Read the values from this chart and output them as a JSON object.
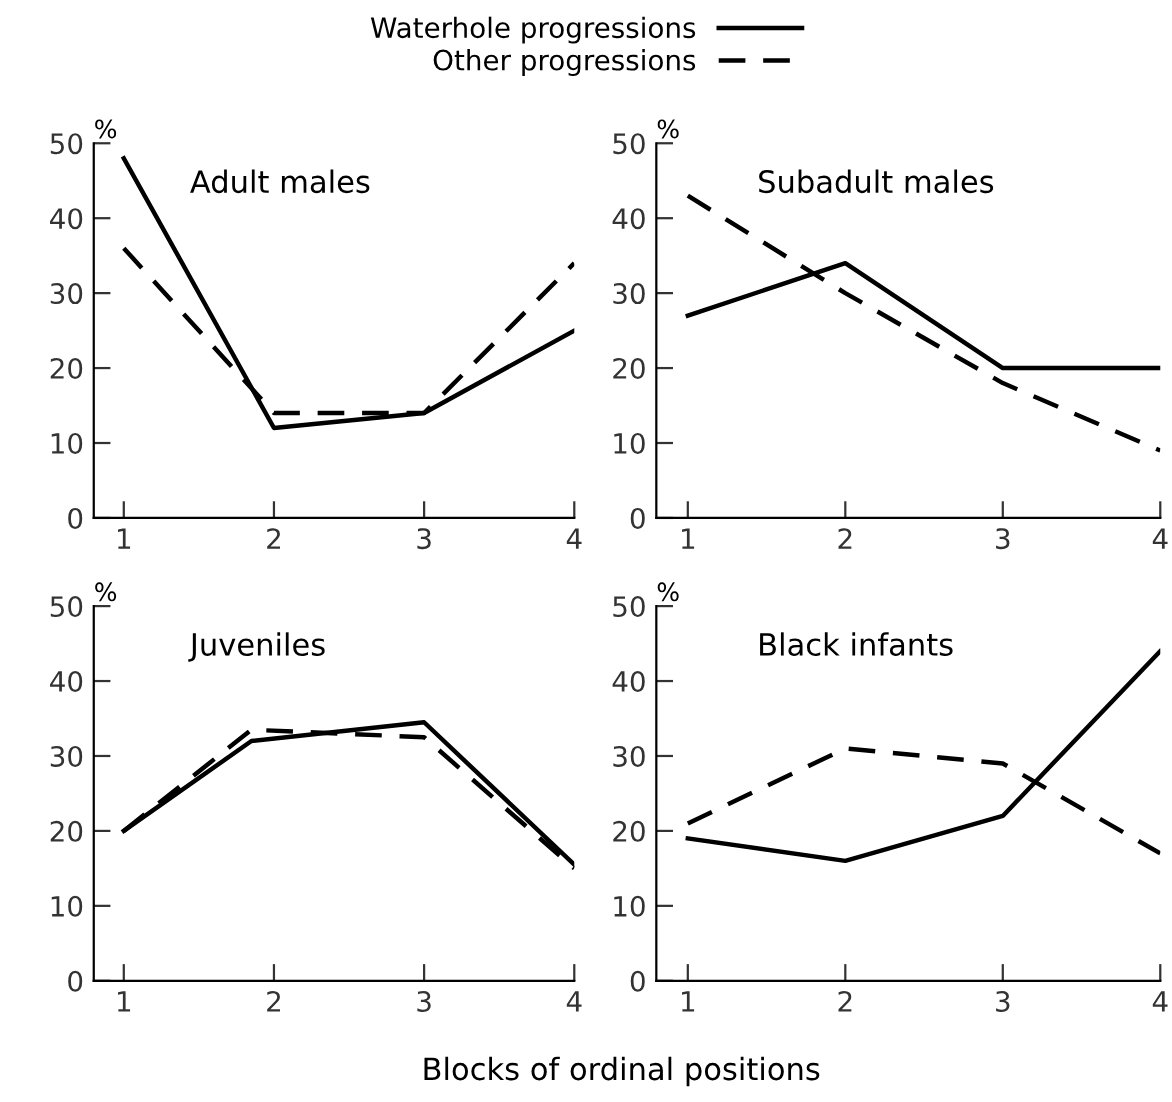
{
  "chart_data": [
    {
      "type": "line",
      "title": "Adult males",
      "ylabel": "%",
      "x": [
        1,
        2,
        3,
        4
      ],
      "xlim": [
        0.8,
        4
      ],
      "xticks": [
        1,
        2,
        3,
        4
      ],
      "ylim": [
        0,
        50
      ],
      "yticks": [
        0,
        10,
        20,
        30,
        40,
        50
      ],
      "legend": "top",
      "grid": false,
      "marker": "none",
      "series": [
        {
          "name": "Waterhole progressions",
          "color": "#000000",
          "line_style": "solid",
          "values": [
            48,
            12,
            14,
            25
          ]
        },
        {
          "name": "Other progressions",
          "color": "#000000",
          "line_style": "dashed",
          "values": [
            36,
            14,
            14,
            34
          ]
        }
      ]
    },
    {
      "type": "line",
      "title": "Subadult males",
      "ylabel": "%",
      "x": [
        1,
        2,
        3,
        4
      ],
      "xlim": [
        0.8,
        4
      ],
      "xticks": [
        1,
        2,
        3,
        4
      ],
      "ylim": [
        0,
        50
      ],
      "yticks": [
        0,
        10,
        20,
        30,
        40,
        50
      ],
      "grid": false,
      "marker": "none",
      "series": [
        {
          "color": "#000000",
          "line_style": "solid",
          "values": [
            27,
            34,
            20,
            20
          ]
        },
        {
          "color": "#000000",
          "line_style": "dashed",
          "values": [
            43,
            30,
            18,
            9
          ]
        }
      ]
    },
    {
      "type": "line",
      "title": "Juveniles",
      "ylabel": "%",
      "xlabel": "Blocks of ordinal positions",
      "x": [
        1,
        1.85,
        3,
        4
      ],
      "xlim": [
        0.8,
        4
      ],
      "xticks": [
        1,
        2,
        3,
        4
      ],
      "ylim": [
        0,
        50
      ],
      "yticks": [
        0,
        10,
        20,
        30,
        40,
        50
      ],
      "grid": false,
      "marker": "none",
      "series": [
        {
          "color": "#000000",
          "line_style": "solid",
          "values": [
            20,
            32,
            34.5,
            15.5
          ]
        },
        {
          "color": "#000000",
          "line_style": "dashed",
          "values": [
            20,
            33.5,
            32.5,
            15
          ]
        }
      ]
    },
    {
      "type": "line",
      "title": "Black infants",
      "ylabel": "%",
      "x": [
        1,
        2,
        3,
        4
      ],
      "xlim": [
        0.8,
        4
      ],
      "xticks": [
        1,
        2,
        3,
        4
      ],
      "ylim": [
        0,
        50
      ],
      "yticks": [
        0,
        10,
        20,
        30,
        40,
        50
      ],
      "grid": false,
      "marker": "none",
      "series": [
        {
          "color": "#000000",
          "line_style": "solid",
          "values": [
            19,
            16,
            22,
            44
          ]
        },
        {
          "color": "#000000",
          "line_style": "dashed",
          "values": [
            21,
            31,
            29,
            17
          ]
        }
      ]
    }
  ]
}
